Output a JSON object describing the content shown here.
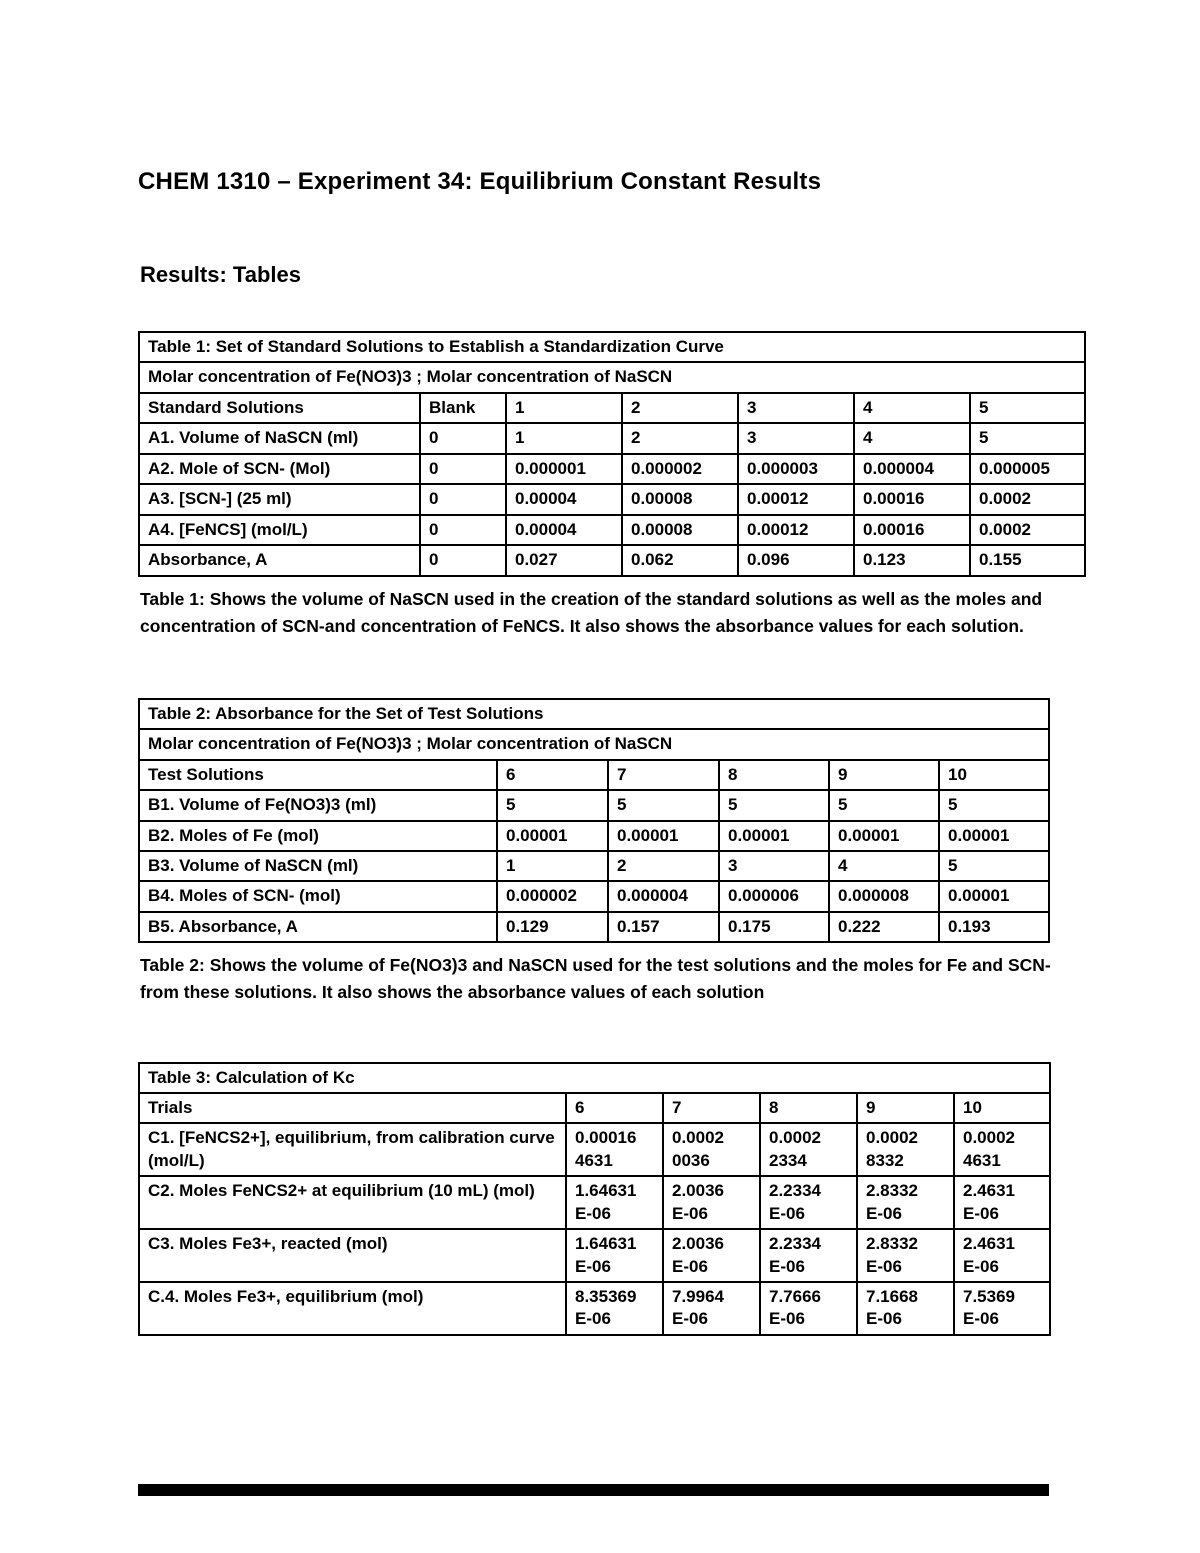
{
  "doc": {
    "title": "CHEM 1310 – Experiment 34: Equilibrium Constant Results",
    "section_heading": "Results: Tables"
  },
  "table1": {
    "title": "Table 1: Set of Standard Solutions to Establish a Standardization Curve",
    "subtitle": "Molar concentration of Fe(NO3)3 ; Molar concentration of NaSCN",
    "header": [
      "Standard Solutions",
      "Blank",
      "1",
      "2",
      "3",
      "4",
      "5"
    ],
    "rows": [
      [
        "A1. Volume of NaSCN (ml)",
        "0",
        "1",
        "2",
        "3",
        "4",
        "5"
      ],
      [
        "A2. Mole of SCN- (Mol)",
        "0",
        "0.000001",
        "0.000002",
        "0.000003",
        "0.000004",
        "0.000005"
      ],
      [
        "A3. [SCN-] (25 ml)",
        "0",
        "0.00004",
        "0.00008",
        "0.00012",
        "0.00016",
        "0.0002"
      ],
      [
        "A4. [FeNCS] (mol/L)",
        "0",
        "0.00004",
        "0.00008",
        "0.00012",
        "0.00016",
        "0.0002"
      ],
      [
        "Absorbance, A",
        "0",
        "0.027",
        "0.062",
        "0.096",
        "0.123",
        "0.155"
      ]
    ],
    "caption": "Table 1: Shows the volume of NaSCN used in the creation of the standard solutions as well as the moles and concentration of SCN-and concentration of FeNCS. It also shows the absorbance values for each solution."
  },
  "table2": {
    "title": "Table 2:  Absorbance for the Set of Test Solutions",
    "subtitle": "Molar concentration of Fe(NO3)3 ; Molar concentration of NaSCN",
    "header": [
      "Test Solutions",
      "6",
      "7",
      "8",
      "9",
      "10"
    ],
    "rows": [
      [
        "B1. Volume of Fe(NO3)3  (ml)",
        "5",
        "5",
        "5",
        "5",
        "5"
      ],
      [
        "B2. Moles of Fe (mol)",
        "0.00001",
        "0.00001",
        "0.00001",
        "0.00001",
        "0.00001"
      ],
      [
        "B3. Volume of NaSCN (ml)",
        "1",
        "2",
        "3",
        "4",
        "5"
      ],
      [
        "B4. Moles of SCN- (mol)",
        "0.000002",
        "0.000004",
        "0.000006",
        "0.000008",
        "0.00001"
      ],
      [
        "B5. Absorbance, A",
        "0.129",
        "0.157",
        "0.175",
        "0.222",
        "0.193"
      ]
    ],
    "caption": "Table 2: Shows the volume of Fe(NO3)3 and NaSCN used for the test solutions and the moles for Fe and SCN- from these solutions. It also shows the absorbance values of each solution"
  },
  "table3": {
    "title": "Table 3: Calculation of Kc",
    "header": [
      "Trials",
      "6",
      "7",
      "8",
      "9",
      "10"
    ],
    "rows": [
      [
        "C1. [FeNCS2+], equilibrium, from calibration curve (mol/L)",
        "0.00016\n4631",
        "0.0002\n0036",
        "0.0002\n2334",
        "0.0002\n8332",
        "0.0002\n4631"
      ],
      [
        "C2. Moles FeNCS2+ at equilibrium (10 mL) (mol)",
        "1.64631\nE-06",
        "2.0036\nE-06",
        "2.2334\nE-06",
        "2.8332\nE-06",
        "2.4631\nE-06"
      ],
      [
        "C3. Moles Fe3+, reacted (mol)",
        "1.64631\nE-06",
        "2.0036\nE-06",
        "2.2334\nE-06",
        "2.8332\nE-06",
        "2.4631\nE-06"
      ],
      [
        "C.4. Moles Fe3+, equilibrium (mol)",
        "8.35369\nE-06",
        "7.9964\nE-06",
        "7.7666\nE-06",
        "7.1668\nE-06",
        "7.5369\nE-06"
      ]
    ]
  }
}
